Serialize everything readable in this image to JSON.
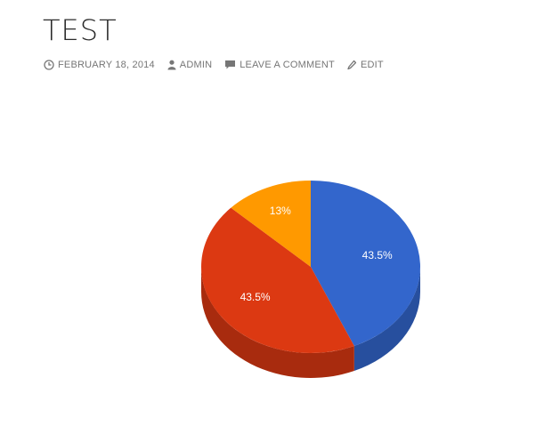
{
  "post": {
    "title": "TEST",
    "meta": {
      "date": "FEBRUARY 18, 2014",
      "author": "ADMIN",
      "comment": "LEAVE A COMMENT",
      "edit": "EDIT"
    },
    "icons": [
      "clock-icon",
      "person-icon",
      "comment-bubble-icon",
      "pencil-icon"
    ]
  },
  "chart_data": {
    "type": "pie",
    "style": "3d",
    "slices": [
      {
        "label": "43.5%",
        "value": 43.5,
        "color": "#3366cc",
        "side_color": "#274f9e"
      },
      {
        "label": "43.5%",
        "value": 43.5,
        "color": "#dc3912",
        "side_color": "#a82b0e"
      },
      {
        "label": "13%",
        "value": 13,
        "color": "#ff9900",
        "side_color": "#c27400"
      }
    ]
  }
}
